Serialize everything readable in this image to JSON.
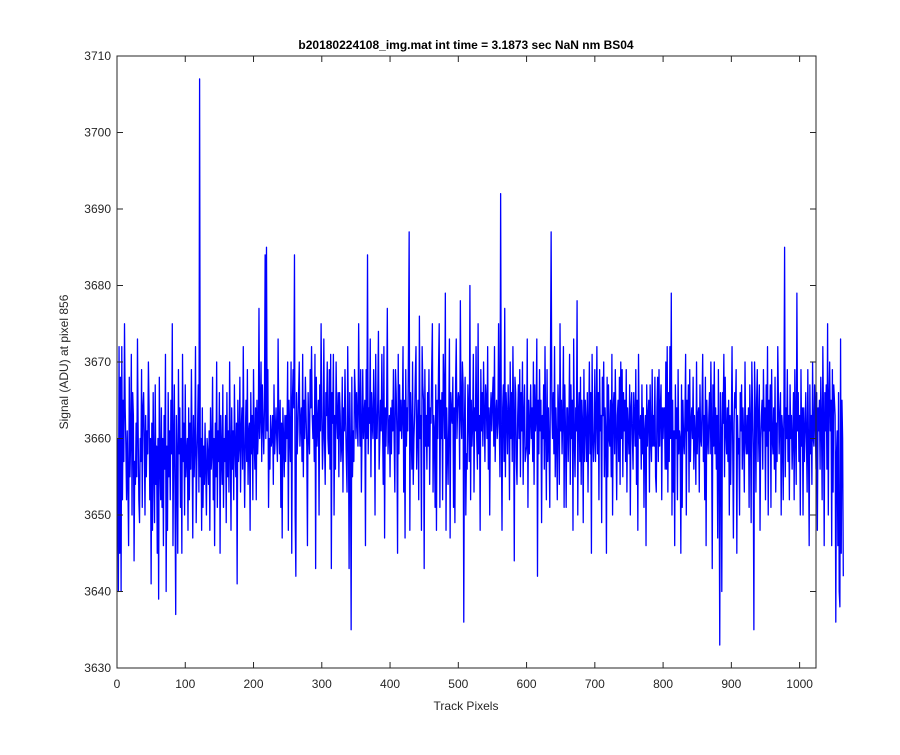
{
  "chart_data": {
    "type": "line",
    "title": "b20180224108_img.mat int time = 3.1873 sec  NaN nm BS04",
    "xlabel": "Track Pixels",
    "ylabel": "Signal (ADU) at pixel 856",
    "xlim": [
      0,
      1024
    ],
    "ylim": [
      3630,
      3710
    ],
    "x_ticks": [
      0,
      100,
      200,
      300,
      400,
      500,
      600,
      700,
      800,
      900,
      1000
    ],
    "y_ticks": [
      3630,
      3640,
      3650,
      3660,
      3670,
      3680,
      3690,
      3700,
      3710
    ],
    "x_tick_labels": [
      "0",
      "100",
      "200",
      "300",
      "400",
      "500",
      "600",
      "700",
      "800",
      "900",
      "1000"
    ],
    "y_tick_labels": [
      "3630",
      "3640",
      "3650",
      "3660",
      "3670",
      "3680",
      "3690",
      "3700",
      "3710"
    ],
    "grid": false,
    "box": true,
    "series": [
      {
        "color": "#0000ff",
        "x_start": 1,
        "x_step": 1,
        "values": [
          3660,
          3640,
          3672,
          3645,
          3668,
          3640,
          3672,
          3652,
          3665,
          3657,
          3675,
          3664,
          3659,
          3652,
          3661,
          3654,
          3646,
          3668,
          3655,
          3660,
          3671,
          3650,
          3666,
          3663,
          3644,
          3657,
          3654,
          3662,
          3655,
          3673,
          3661,
          3652,
          3649,
          3660,
          3657,
          3669,
          3651,
          3664,
          3666,
          3660,
          3650,
          3663,
          3655,
          3661,
          3658,
          3670,
          3664,
          3652,
          3660,
          3641,
          3662,
          3648,
          3666,
          3656,
          3649,
          3667,
          3654,
          3659,
          3645,
          3660,
          3639,
          3668,
          3657,
          3652,
          3664,
          3651,
          3660,
          3646,
          3663,
          3656,
          3671,
          3640,
          3659,
          3648,
          3666,
          3655,
          3661,
          3652,
          3665,
          3658,
          3675,
          3646,
          3659,
          3667,
          3652,
          3637,
          3663,
          3657,
          3645,
          3669,
          3658,
          3664,
          3651,
          3660,
          3645,
          3671,
          3657,
          3662,
          3650,
          3667,
          3655,
          3658,
          3660,
          3648,
          3664,
          3652,
          3662,
          3656,
          3669,
          3659,
          3647,
          3663,
          3655,
          3659,
          3672,
          3649,
          3657,
          3661,
          3667,
          3653,
          3707,
          3655,
          3660,
          3648,
          3664,
          3651,
          3659,
          3654,
          3662,
          3656,
          3650,
          3660,
          3658,
          3654,
          3661,
          3648,
          3664,
          3656,
          3658,
          3668,
          3652,
          3660,
          3646,
          3662,
          3655,
          3670,
          3651,
          3661,
          3657,
          3666,
          3645,
          3663,
          3658,
          3654,
          3667,
          3651,
          3660,
          3657,
          3663,
          3649,
          3666,
          3655,
          3661,
          3653,
          3670,
          3659,
          3648,
          3664,
          3656,
          3661,
          3652,
          3667,
          3659,
          3655,
          3662,
          3641,
          3665,
          3657,
          3659,
          3668,
          3653,
          3661,
          3664,
          3656,
          3672,
          3659,
          3651,
          3660,
          3665,
          3657,
          3669,
          3654,
          3661,
          3662,
          3648,
          3666,
          3658,
          3663,
          3652,
          3669,
          3660,
          3656,
          3664,
          3652,
          3665,
          3658,
          3661,
          3677,
          3660,
          3663,
          3670,
          3657,
          3667,
          3662,
          3658,
          3664,
          3684,
          3660,
          3685,
          3661,
          3669,
          3651,
          3660,
          3656,
          3663,
          3659,
          3660,
          3663,
          3654,
          3667,
          3658,
          3661,
          3664,
          3660,
          3657,
          3673,
          3662,
          3658,
          3665,
          3651,
          3662,
          3647,
          3664,
          3660,
          3655,
          3663,
          3657,
          3663,
          3660,
          3670,
          3648,
          3665,
          3661,
          3657,
          3670,
          3645,
          3665,
          3669,
          3664,
          3684,
          3650,
          3642,
          3666,
          3658,
          3661,
          3666,
          3670,
          3659,
          3662,
          3664,
          3657,
          3671,
          3655,
          3665,
          3660,
          3668,
          3663,
          3659,
          3646,
          3666,
          3661,
          3658,
          3669,
          3664,
          3672,
          3663,
          3660,
          3663,
          3657,
          3671,
          3643,
          3668,
          3659,
          3662,
          3665,
          3650,
          3667,
          3661,
          3675,
          3663,
          3656,
          3660,
          3673,
          3660,
          3654,
          3666,
          3663,
          3670,
          3660,
          3658,
          3669,
          3656,
          3671,
          3643,
          3666,
          3662,
          3671,
          3650,
          3663,
          3656,
          3670,
          3663,
          3660,
          3666,
          3655,
          3666,
          3663,
          3657,
          3659,
          3668,
          3653,
          3664,
          3661,
          3669,
          3662,
          3657,
          3653,
          3672,
          3662,
          3643,
          3666,
          3659,
          3635,
          3668,
          3655,
          3661,
          3657,
          3669,
          3666,
          3660,
          3666,
          3662,
          3659,
          3675,
          3664,
          3659,
          3669,
          3653,
          3661,
          3669,
          3660,
          3663,
          3665,
          3646,
          3669,
          3660,
          3684,
          3658,
          3664,
          3662,
          3673,
          3655,
          3666,
          3662,
          3660,
          3669,
          3664,
          3650,
          3671,
          3660,
          3660,
          3665,
          3674,
          3656,
          3660,
          3665,
          3661,
          3671,
          3662,
          3654,
          3672,
          3647,
          3664,
          3659,
          3664,
          3677,
          3658,
          3661,
          3663,
          3655,
          3664,
          3658,
          3665,
          3661,
          3669,
          3660,
          3653,
          3669,
          3666,
          3661,
          3645,
          3671,
          3658,
          3667,
          3661,
          3665,
          3660,
          3663,
          3672,
          3653,
          3665,
          3647,
          3669,
          3659,
          3664,
          3661,
          3672,
          3687,
          3648,
          3666,
          3661,
          3656,
          3670,
          3654,
          3660,
          3663,
          3668,
          3672,
          3656,
          3661,
          3665,
          3652,
          3676,
          3660,
          3663,
          3648,
          3672,
          3667,
          3665,
          3643,
          3669,
          3659,
          3663,
          3656,
          3666,
          3659,
          3669,
          3654,
          3664,
          3662,
          3669,
          3675,
          3653,
          3663,
          3661,
          3651,
          3667,
          3648,
          3665,
          3660,
          3669,
          3675,
          3651,
          3665,
          3660,
          3666,
          3652,
          3671,
          3666,
          3660,
          3679,
          3648,
          3664,
          3659,
          3654,
          3662,
          3673,
          3647,
          3666,
          3663,
          3662,
          3668,
          3651,
          3664,
          3649,
          3667,
          3673,
          3660,
          3664,
          3666,
          3665,
          3656,
          3678,
          3663,
          3660,
          3670,
          3667,
          3636,
          3662,
          3668,
          3650,
          3658,
          3656,
          3667,
          3663,
          3657,
          3680,
          3652,
          3665,
          3659,
          3662,
          3671,
          3653,
          3664,
          3661,
          3672,
          3660,
          3656,
          3675,
          3658,
          3663,
          3648,
          3669,
          3661,
          3666,
          3659,
          3670,
          3663,
          3657,
          3667,
          3665,
          3660,
          3672,
          3656,
          3664,
          3650,
          3663,
          3666,
          3661,
          3665,
          3668,
          3659,
          3672,
          3657,
          3663,
          3665,
          3660,
          3662,
          3675,
          3662,
          3655,
          3692,
          3661,
          3648,
          3664,
          3667,
          3657,
          3677,
          3655,
          3666,
          3663,
          3658,
          3667,
          3663,
          3652,
          3670,
          3660,
          3666,
          3657,
          3672,
          3663,
          3644,
          3668,
          3666,
          3657,
          3654,
          3663,
          3667,
          3660,
          3669,
          3655,
          3666,
          3661,
          3670,
          3654,
          3663,
          3667,
          3657,
          3658,
          3659,
          3673,
          3651,
          3665,
          3658,
          3662,
          3667,
          3660,
          3664,
          3657,
          3670,
          3654,
          3667,
          3661,
          3663,
          3673,
          3642,
          3665,
          3658,
          3669,
          3661,
          3665,
          3649,
          3663,
          3660,
          3667,
          3656,
          3672,
          3661,
          3652,
          3669,
          3657,
          3664,
          3659,
          3651,
          3670,
          3687,
          3664,
          3660,
          3666,
          3658,
          3672,
          3655,
          3664,
          3660,
          3652,
          3667,
          3663,
          3654,
          3675,
          3661,
          3665,
          3658,
          3663,
          3672,
          3651,
          3667,
          3661,
          3651,
          3664,
          3664,
          3657,
          3662,
          3671,
          3654,
          3667,
          3660,
          3665,
          3648,
          3673,
          3660,
          3655,
          3664,
          3661,
          3678,
          3650,
          3663,
          3666,
          3657,
          3668,
          3654,
          3665,
          3662,
          3649,
          3669,
          3657,
          3665,
          3662,
          3657,
          3666,
          3653,
          3662,
          3670,
          3658,
          3666,
          3645,
          3671,
          3661,
          3657,
          3660,
          3669,
          3657,
          3662,
          3672,
          3658,
          3666,
          3652,
          3669,
          3661,
          3663,
          3649,
          3668,
          3663,
          3670,
          3655,
          3664,
          3661,
          3645,
          3668,
          3655,
          3667,
          3660,
          3659,
          3665,
          3655,
          3671,
          3650,
          3664,
          3666,
          3658,
          3669,
          3661,
          3652,
          3663,
          3665,
          3657,
          3668,
          3654,
          3670,
          3660,
          3669,
          3655,
          3666,
          3661,
          3665,
          3657,
          3669,
          3653,
          3664,
          3661,
          3658,
          3667,
          3650,
          3664,
          3666,
          3660,
          3656,
          3666,
          3663,
          3659,
          3669,
          3654,
          3665,
          3648,
          3671,
          3661,
          3660,
          3663,
          3656,
          3667,
          3658,
          3664,
          3651,
          3661,
          3663,
          3646,
          3667,
          3659,
          3663,
          3665,
          3653,
          3667,
          3660,
          3657,
          3669,
          3659,
          3663,
          3659,
          3668,
          3655,
          3653,
          3664,
          3668,
          3657,
          3669,
          3659,
          3664,
          3667,
          3652,
          3664,
          3660,
          3664,
          3664,
          3656,
          3670,
          3656,
          3672,
          3653,
          3666,
          3657,
          3672,
          3660,
          3679,
          3650,
          3665,
          3653,
          3661,
          3646,
          3667,
          3660,
          3664,
          3652,
          3669,
          3658,
          3661,
          3660,
          3645,
          3667,
          3651,
          3665,
          3660,
          3658,
          3663,
          3671,
          3650,
          3665,
          3661,
          3667,
          3653,
          3669,
          3657,
          3662,
          3664,
          3660,
          3668,
          3656,
          3663,
          3660,
          3654,
          3670,
          3658,
          3663,
          3664,
          3653,
          3667,
          3660,
          3659,
          3664,
          3671,
          3657,
          3663,
          3652,
          3668,
          3646,
          3665,
          3661,
          3658,
          3663,
          3666,
          3658,
          3670,
          3662,
          3643,
          3667,
          3659,
          3670,
          3658,
          3664,
          3656,
          3663,
          3647,
          3669,
          3658,
          3633,
          3666,
          3661,
          3640,
          3666,
          3662,
          3671,
          3655,
          3668,
          3661,
          3658,
          3664,
          3657,
          3665,
          3650,
          3663,
          3654,
          3662,
          3672,
          3659,
          3647,
          3662,
          3666,
          3664,
          3669,
          3645,
          3663,
          3658,
          3660,
          3650,
          3666,
          3661,
          3667,
          3656,
          3664,
          3660,
          3653,
          3670,
          3660,
          3658,
          3663,
          3658,
          3664,
          3651,
          3667,
          3662,
          3649,
          3670,
          3664,
          3658,
          3635,
          3670,
          3664,
          3653,
          3665,
          3669,
          3657,
          3662,
          3667,
          3648,
          3660,
          3663,
          3665,
          3656,
          3669,
          3661,
          3664,
          3652,
          3667,
          3659,
          3672,
          3650,
          3665,
          3661,
          3667,
          3651,
          3669,
          3660,
          3658,
          3664,
          3656,
          3668,
          3653,
          3662,
          3657,
          3672,
          3665,
          3658,
          3663,
          3666,
          3650,
          3663,
          3661,
          3652,
          3664,
          3685,
          3655,
          3664,
          3660,
          3669,
          3657,
          3663,
          3652,
          3667,
          3660,
          3663,
          3656,
          3660,
          3666,
          3652,
          3669,
          3661,
          3654,
          3679,
          3661,
          3666,
          3657,
          3663,
          3650,
          3669,
          3659,
          3664,
          3650,
          3664,
          3657,
          3661,
          3666,
          3660,
          3653,
          3669,
          3659,
          3646,
          3667,
          3658,
          3663,
          3654,
          3670,
          3660,
          3659,
          3667,
          3662,
          3656,
          3666,
          3648,
          3664,
          3661,
          3665,
          3656,
          3668,
          3662,
          3652,
          3672,
          3663,
          3646,
          3666,
          3661,
          3667,
          3656,
          3675,
          3650,
          3665,
          3670,
          3661,
          3665,
          3646,
          3669,
          3653,
          3667,
          3665,
          3663,
          3636,
          3658,
          3661,
          3646,
          3666,
          3640,
          3638,
          3673,
          3645,
          3665,
          3660,
          3642
        ]
      }
    ]
  }
}
